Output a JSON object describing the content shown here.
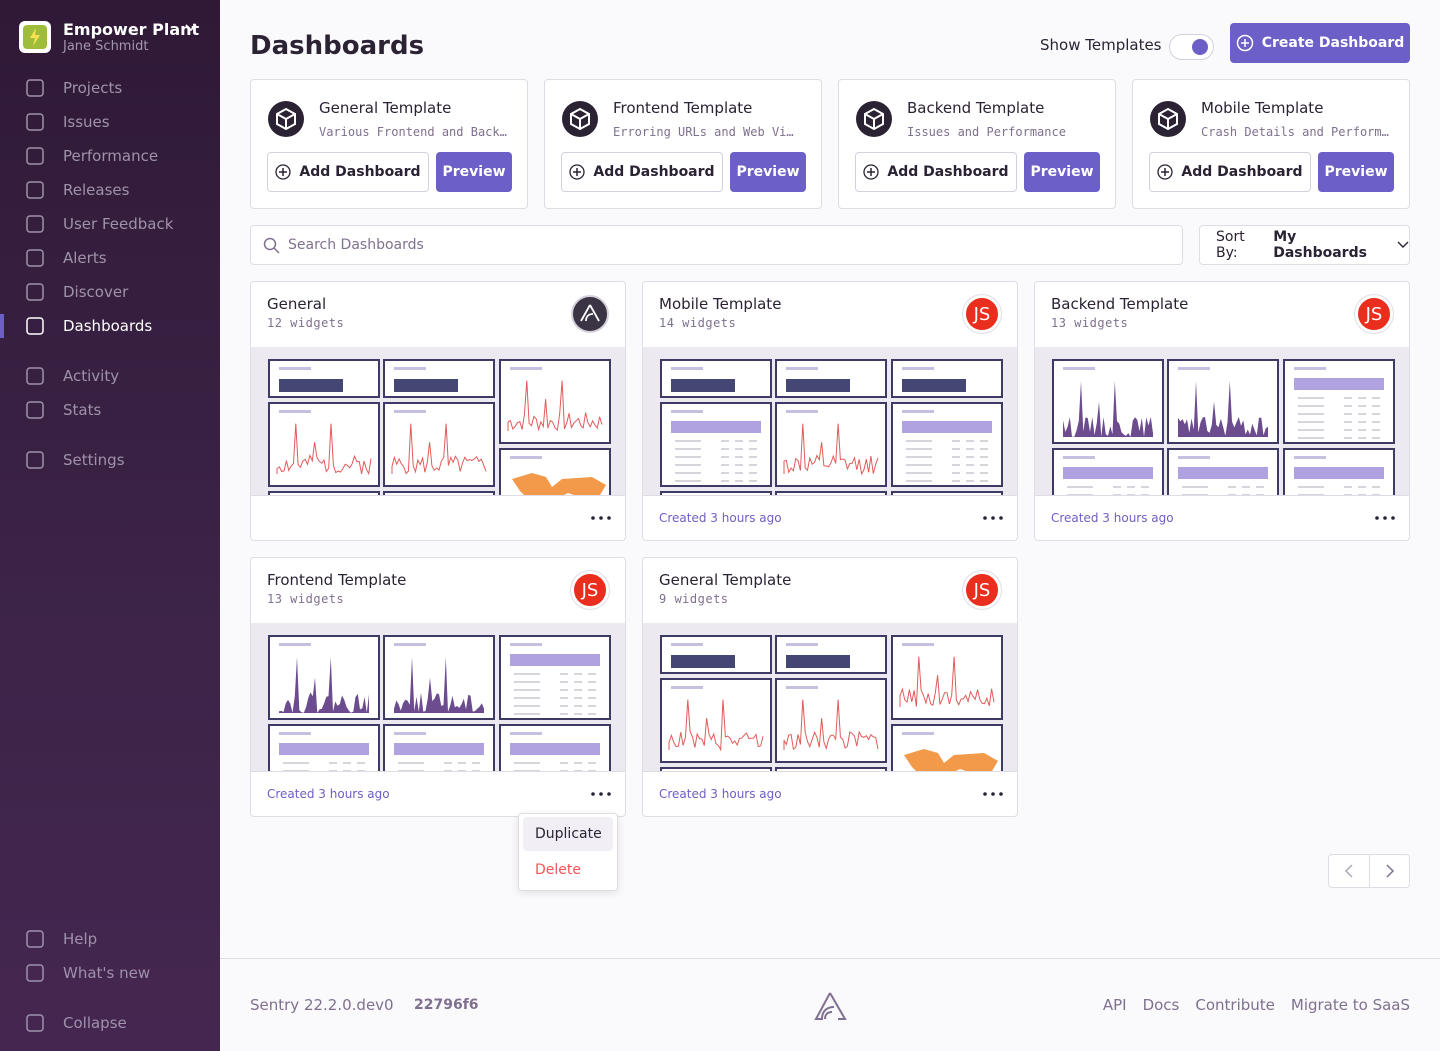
{
  "sidebar": {
    "org": "Empower Plant",
    "user": "Jane Schmidt",
    "nav": [
      "Projects",
      "Issues",
      "Performance",
      "Releases",
      "User Feedback",
      "Alerts",
      "Discover",
      "Dashboards",
      "Activity",
      "Stats",
      "Settings"
    ],
    "bottom": [
      "Help",
      "What's new",
      "Collapse"
    ]
  },
  "header": {
    "title": "Dashboards",
    "toggle": "Show Templates",
    "create": "Create Dashboard"
  },
  "templates": [
    {
      "name": "General Template",
      "description": "Various Frontend and Back…",
      "add": "Add Dashboard",
      "preview": "Preview"
    },
    {
      "name": "Frontend Template",
      "description": "Erroring URLs and Web Vi…",
      "add": "Add Dashboard",
      "preview": "Preview"
    },
    {
      "name": "Backend Template",
      "description": "Issues and Performance",
      "add": "Add Dashboard",
      "preview": "Preview"
    },
    {
      "name": "Mobile Template",
      "description": "Crash Details and Perform…",
      "add": "Add Dashboard",
      "preview": "Preview"
    }
  ],
  "search": {
    "placeholder": "Search Dashboards",
    "sort_label": "Sort By:",
    "sort_value": "My Dashboards"
  },
  "dashboards": [
    {
      "title": "General",
      "widgets": "12 widgets"
    },
    {
      "title": "Mobile Template",
      "widgets": "14 widgets",
      "created": "Created 3 hours ago",
      "avatar": "JS"
    },
    {
      "title": "Backend Template",
      "widgets": "13 widgets",
      "created": "Created 3 hours ago",
      "avatar": "JS"
    },
    {
      "title": "Frontend Template",
      "widgets": "13 widgets",
      "created": "Created 3 hours ago",
      "avatar": "JS"
    },
    {
      "title": "General Template",
      "widgets": "9 widgets",
      "created": "Created 3 hours ago",
      "avatar": "JS"
    }
  ],
  "menu": [
    "Duplicate",
    "Delete"
  ],
  "footer": {
    "version": "Sentry 22.2.0.dev0",
    "commit": "22796f6",
    "links": [
      "API",
      "Docs",
      "Contribute",
      "Migrate to SaaS"
    ]
  }
}
